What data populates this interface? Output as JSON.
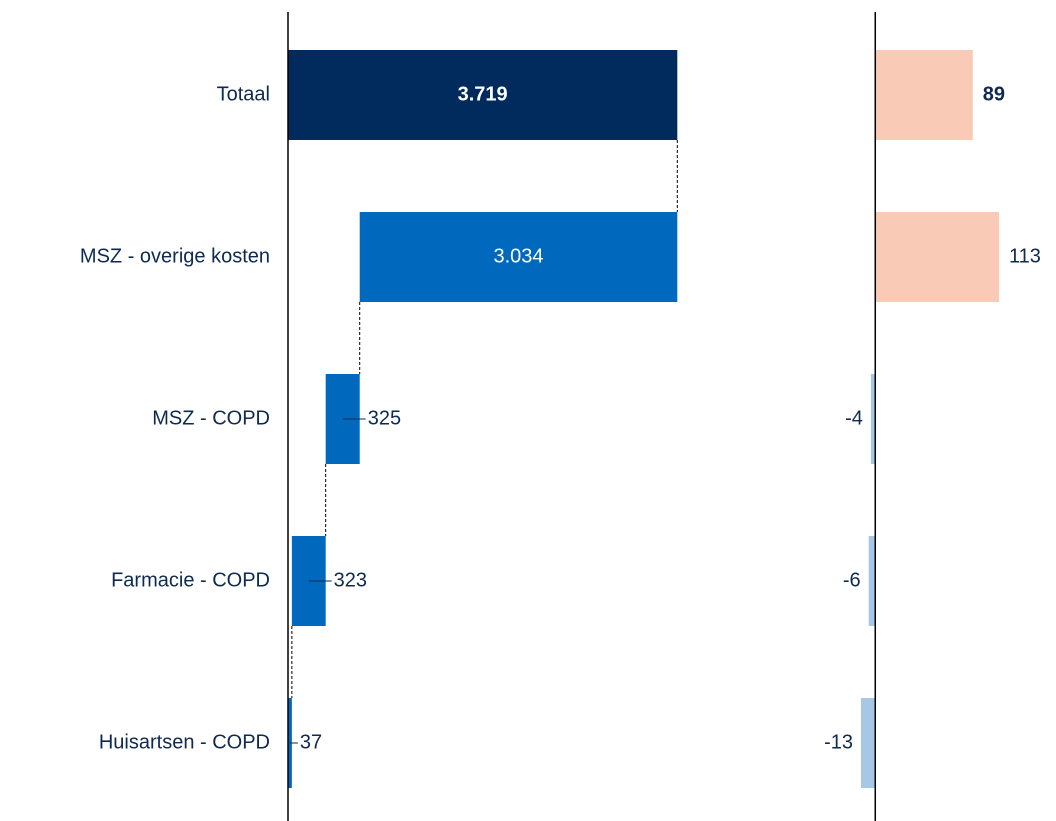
{
  "chart_data": [
    {
      "type": "waterfall",
      "categories": [
        "Totaal",
        "MSZ - overige kosten",
        "MSZ - COPD",
        "Farmacie - COPD",
        "Huisartsen - COPD"
      ],
      "values": [
        3719,
        3034,
        325,
        323,
        37
      ],
      "value_labels": [
        "3.719",
        "3.034",
        "325",
        "323",
        "37"
      ],
      "colors": [
        "#002b5c",
        "#0069be",
        "#0069be",
        "#0069be",
        "#0069be"
      ],
      "xlim": [
        0,
        4700
      ]
    },
    {
      "type": "bar",
      "values": [
        89,
        113,
        -4,
        -6,
        -13
      ],
      "positive_color": "#f9cbb7",
      "negative_color": "#a6c8e4",
      "xlim": [
        -160,
        165
      ]
    }
  ]
}
